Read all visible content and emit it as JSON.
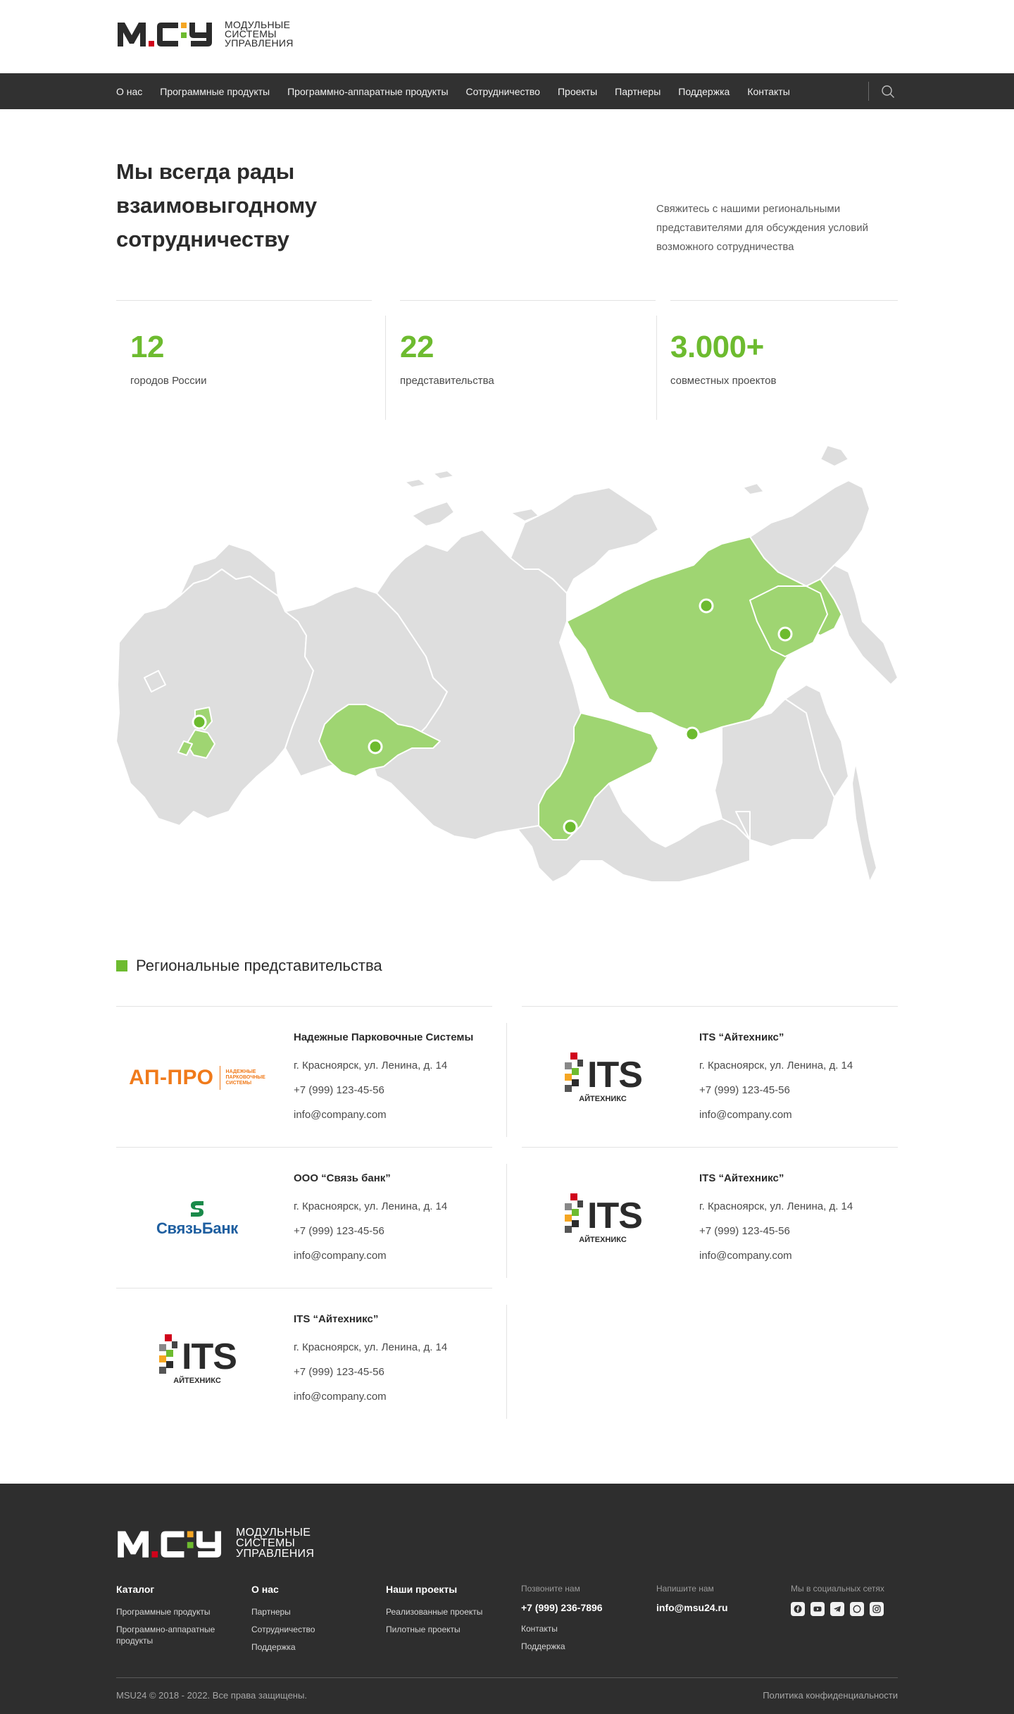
{
  "brand": {
    "logo_text": [
      "МОДУЛЬНЫЕ",
      "СИСТЕМЫ",
      "УПРАВЛЕНИЯ"
    ],
    "accent_red": "#d0021b",
    "accent_green": "#6dbb2f",
    "accent_orange": "#f5a623"
  },
  "nav": {
    "items": [
      "О нас",
      "Программные продукты",
      "Программно-аппаратные продукты",
      "Сотрудничество",
      "Проекты",
      "Партнеры",
      "Поддержка",
      "Контакты"
    ],
    "search_icon": "search-icon"
  },
  "hero": {
    "title": [
      "Мы всегда рады",
      "взаимовыгодному",
      "сотрудничеству"
    ],
    "description": "Свяжитесь с нашими региональными представителями для обсуждения условий возможного сотрудничества"
  },
  "stats": [
    {
      "value": "12",
      "label": "городов России"
    },
    {
      "value": "22",
      "label": "представительства"
    },
    {
      "value": "3.000+",
      "label": "совместных проектов"
    }
  ],
  "regional": {
    "title": "Региональные представительства",
    "cards": [
      {
        "logo": "ap-pro",
        "logo_main": "АП-ПРО",
        "logo_sub": [
          "НАДЕЖНЫЕ",
          "ПАРКОВОЧНЫЕ",
          "СИСТЕМЫ"
        ],
        "name": "Надежные Парковочные Системы",
        "address": "г. Красноярск, ул. Ленина, д. 14",
        "phone": "+7 (999) 123-45-56",
        "email": "info@company.com"
      },
      {
        "logo": "its",
        "logo_main": "ITS",
        "logo_sub": [
          "АЙТЕХНИКС"
        ],
        "name": "ITS “Айтехникс”",
        "address": "г. Красноярск, ул. Ленина, д. 14",
        "phone": "+7 (999) 123-45-56",
        "email": "info@company.com"
      },
      {
        "logo": "svyaz",
        "logo_main": "СвязьБанк",
        "logo_sub": [],
        "name": "ООО “Связь банк”",
        "address": "г. Красноярск, ул. Ленина, д. 14",
        "phone": "+7 (999) 123-45-56",
        "email": "info@company.com"
      },
      {
        "logo": "its",
        "logo_main": "ITS",
        "logo_sub": [
          "АЙТЕХНИКС"
        ],
        "name": "ITS “Айтехникс”",
        "address": "г. Красноярск, ул. Ленина, д. 14",
        "phone": "+7 (999) 123-45-56",
        "email": "info@company.com"
      },
      {
        "logo": "its",
        "logo_main": "ITS",
        "logo_sub": [
          "АЙТЕХНИКС"
        ],
        "name": "ITS “Айтехникс”",
        "address": "г. Красноярск, ул. Ленина, д. 14",
        "phone": "+7 (999) 123-45-56",
        "email": "info@company.com"
      }
    ]
  },
  "footer": {
    "catalog": {
      "title": "Каталог",
      "links": [
        "Программные продукты",
        "Программно-аппаратные продукты"
      ]
    },
    "about": {
      "title": "О нас",
      "links": [
        "Партнеры",
        "Сотрудничество",
        "Поддержка"
      ]
    },
    "projects": {
      "title": "Наши проекты",
      "links": [
        "Реализованные проекты",
        "Пилотные проекты"
      ]
    },
    "call": {
      "title": "Позвоните нам",
      "phone": "+7 (999) 236-7896",
      "links": [
        "Контакты",
        "Поддержка"
      ]
    },
    "write": {
      "title": "Напишите нам",
      "email": "info@msu24.ru"
    },
    "social": {
      "title": "Мы в социальных сетях",
      "icons": [
        "facebook-icon",
        "youtube-icon",
        "telegram-icon",
        "whatsapp-icon",
        "instagram-icon"
      ]
    },
    "copyright": "MSU24 © 2018 - 2022. Все права защищены.",
    "policy": "Политика конфиденциальности"
  }
}
